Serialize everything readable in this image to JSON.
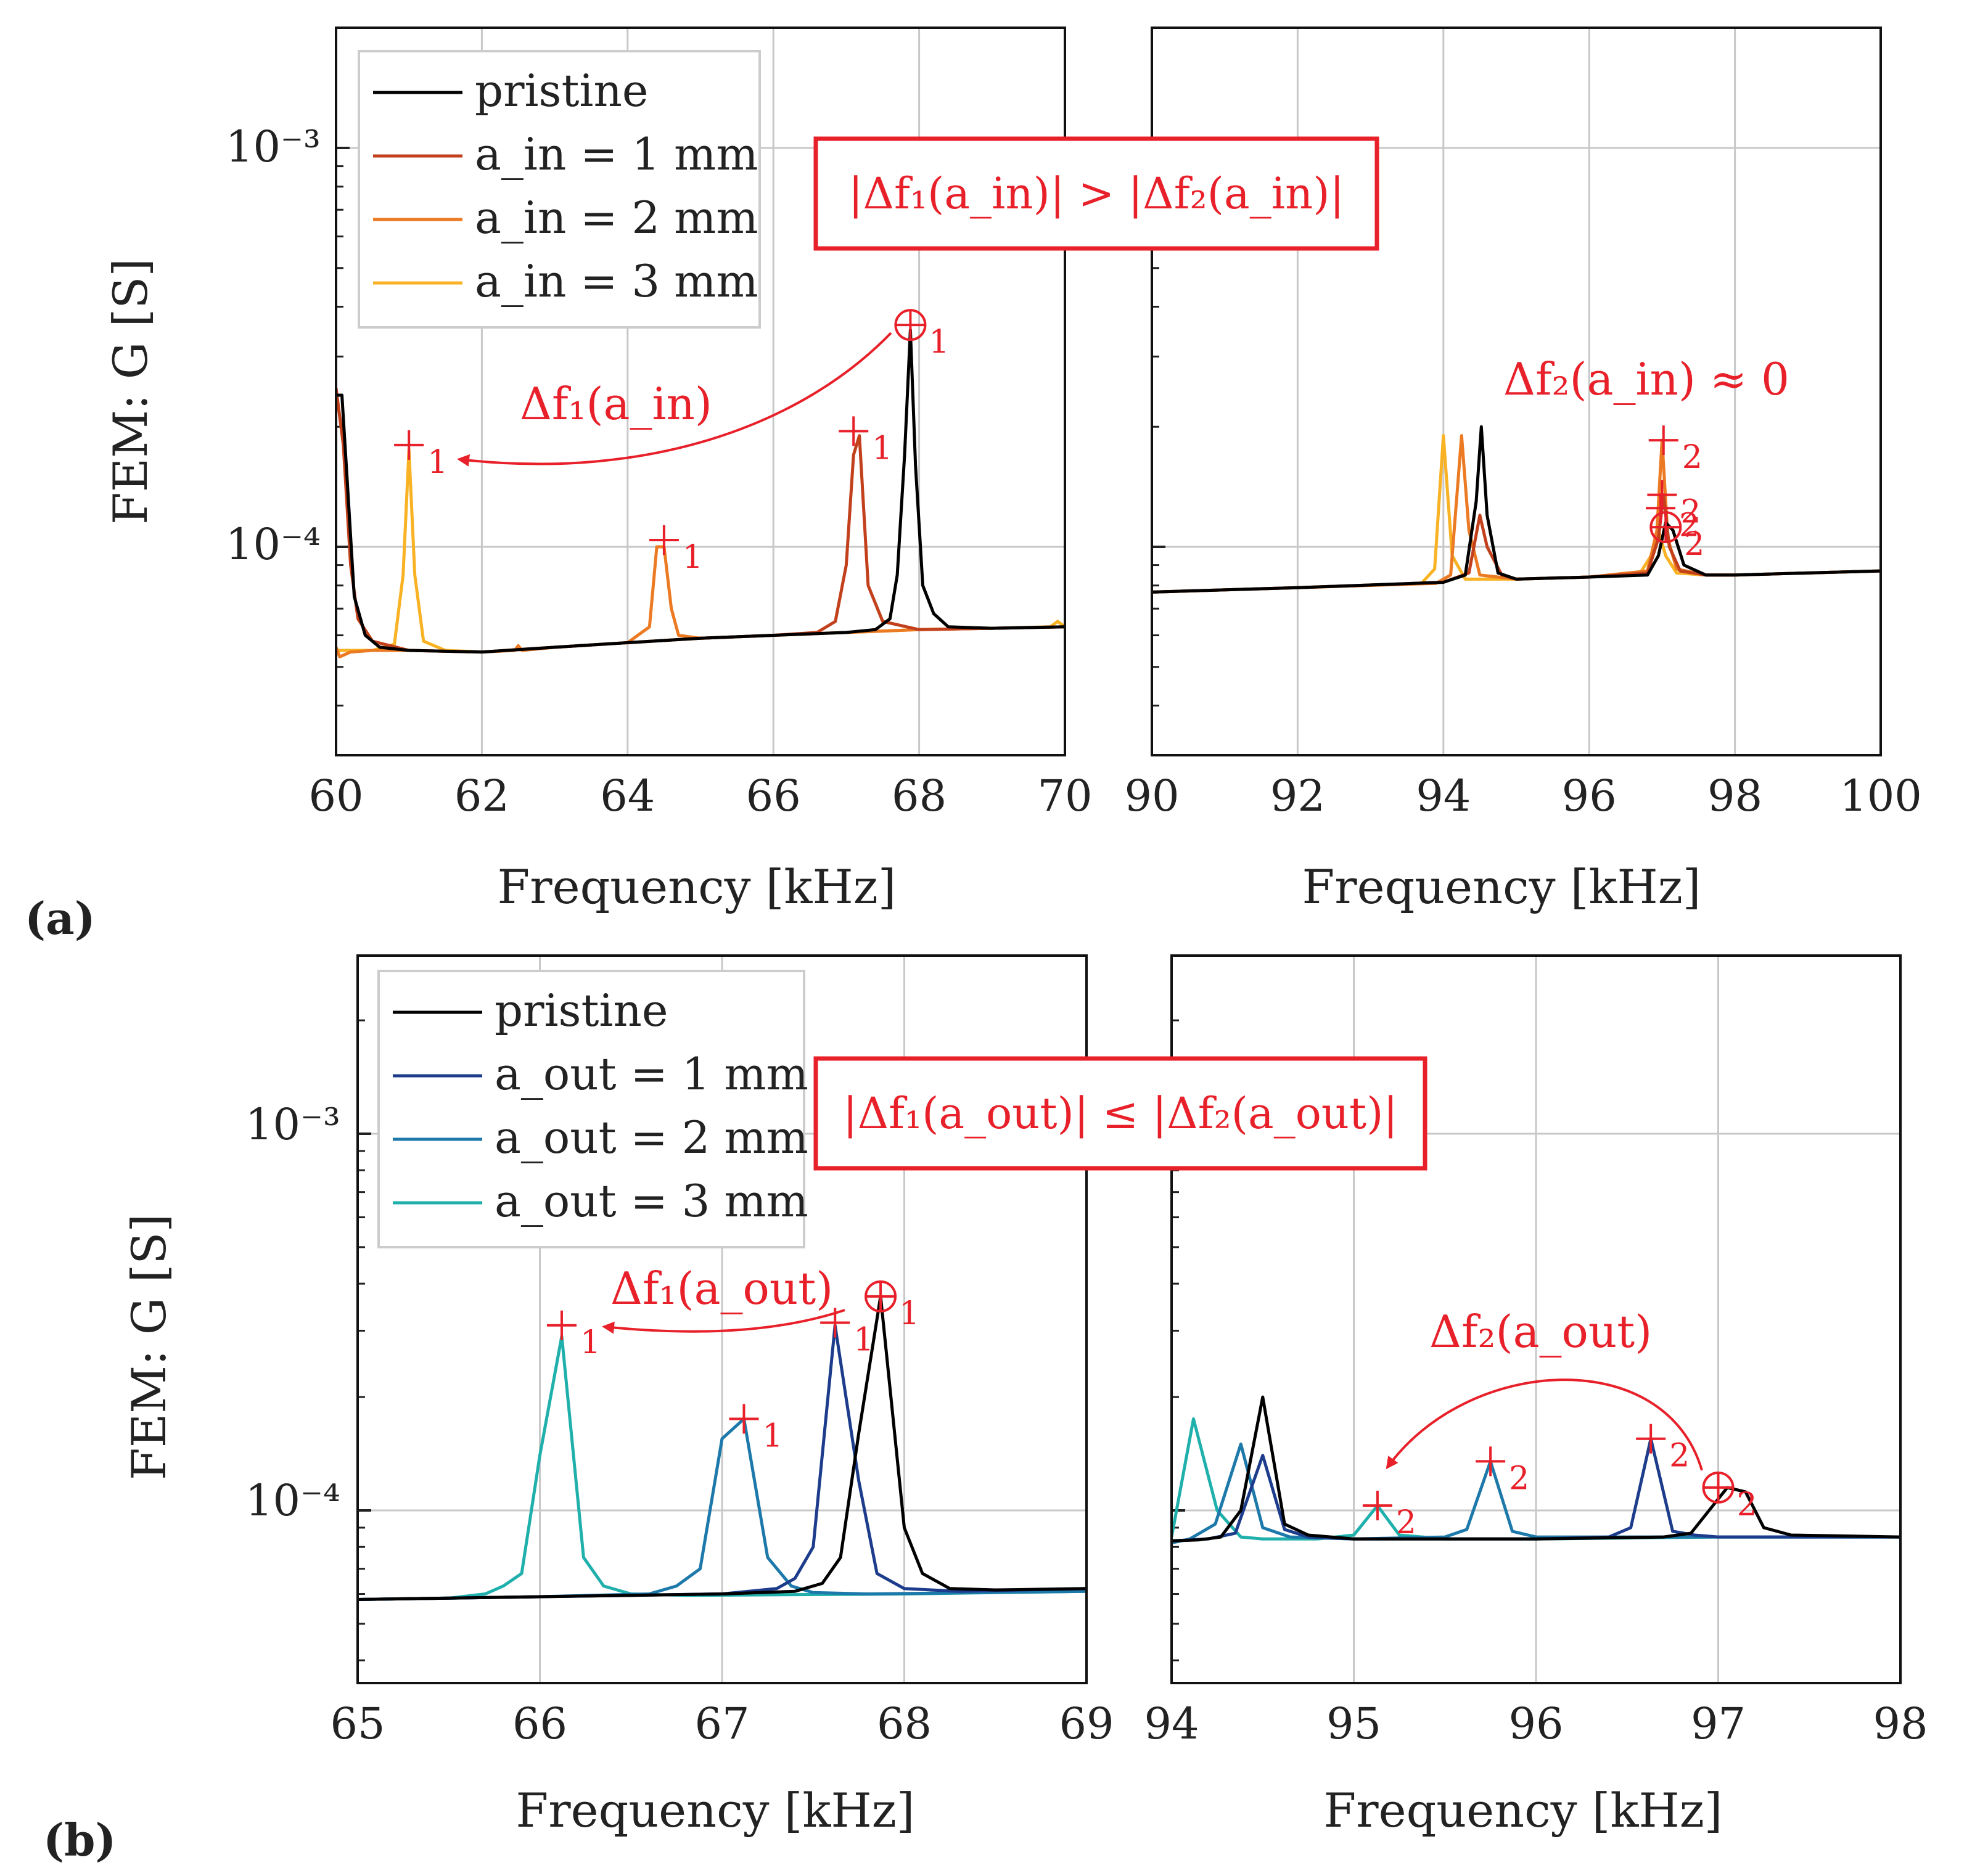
{
  "colors": {
    "pristine": "#000000",
    "ain1": "#c2411c",
    "ain2": "#ec7a22",
    "ain3": "#f8b223",
    "aout1": "#1d3d8c",
    "aout2": "#1d79aa",
    "aout3": "#20b0ac",
    "annotation": "#e8202a",
    "grid": "#c8c8c8"
  },
  "labels": {
    "panel_a": "(a)",
    "panel_b": "(b)",
    "xlabel": "Frequency [kHz]",
    "ylabel": "FEM: G [S]",
    "ytick_1e3": "10⁻³",
    "ytick_1e4": "10⁻⁴",
    "legend_a": [
      "pristine",
      "a_in = 1 mm",
      "a_in = 2 mm",
      "a_in = 3 mm"
    ],
    "legend_b": [
      "pristine",
      "a_out = 1 mm",
      "a_out = 2 mm",
      "a_out = 3 mm"
    ],
    "box_a": "|Δf₁(a_in)| > |Δf₂(a_in)|",
    "box_b": "|Δf₁(a_out)| ≤ |Δf₂(a_out)|",
    "df1_in": "Δf₁(a_in)",
    "df2_in": "Δf₂(a_in) ≈ 0",
    "df1_out": "Δf₁(a_out)",
    "df2_out": "Δf₂(a_out)",
    "marker_1": "1",
    "marker_2": "2"
  },
  "chart_data": [
    {
      "id": "a-left",
      "type": "line",
      "xlabel": "Frequency [kHz]",
      "ylabel": "FEM: G [S]",
      "xlim": [
        60,
        70
      ],
      "ylim": [
        3.5e-05,
        0.0022
      ],
      "yscale": "log",
      "xticks": [
        60,
        62,
        64,
        66,
        68,
        70
      ],
      "series": [
        {
          "name": "pristine",
          "color": "pristine",
          "x": [
            60,
            60.08,
            60.15,
            60.25,
            60.4,
            60.6,
            61,
            62,
            63,
            64,
            65,
            66,
            67,
            67.4,
            67.6,
            67.7,
            67.8,
            67.88,
            67.95,
            68.05,
            68.2,
            68.4,
            69,
            70
          ],
          "y": [
            0.00024,
            0.00024,
            0.00015,
            7.5e-05,
            6e-05,
            5.6e-05,
            5.5e-05,
            5.45e-05,
            5.6e-05,
            5.75e-05,
            5.9e-05,
            6e-05,
            6.1e-05,
            6.2e-05,
            6.6e-05,
            8.5e-05,
            0.00017,
            0.00035,
            0.00016,
            8e-05,
            6.8e-05,
            6.3e-05,
            6.25e-05,
            6.3e-05
          ]
        },
        {
          "name": "a_in = 1 mm",
          "color": "ain1",
          "x": [
            60,
            60.1,
            60.2,
            60.3,
            60.5,
            61,
            62,
            63,
            64,
            65,
            66,
            66.6,
            66.85,
            67.0,
            67.1,
            67.18,
            67.3,
            67.5,
            68,
            69,
            70
          ],
          "y": [
            0.00025,
            0.00018,
            9e-05,
            6.6e-05,
            5.8e-05,
            5.5e-05,
            5.45e-05,
            5.6e-05,
            5.75e-05,
            5.9e-05,
            6e-05,
            6.1e-05,
            6.5e-05,
            9e-05,
            0.00017,
            0.00019,
            8e-05,
            6.5e-05,
            6.2e-05,
            6.25e-05,
            6.3e-05
          ]
        },
        {
          "name": "a_in = 2 mm",
          "color": "ain2",
          "x": [
            60,
            60.05,
            60.2,
            60.5,
            61,
            62,
            62.45,
            62.5,
            62.55,
            63,
            64,
            64.3,
            64.4,
            64.5,
            64.6,
            64.7,
            65,
            66,
            67,
            68,
            69,
            70
          ],
          "y": [
            5.6e-05,
            5.3e-05,
            5.45e-05,
            5.5e-05,
            5.5e-05,
            5.45e-05,
            5.5e-05,
            5.65e-05,
            5.5e-05,
            5.6e-05,
            5.75e-05,
            6.3e-05,
            0.0001,
            0.0001,
            7e-05,
            6e-05,
            5.9e-05,
            6e-05,
            6.1e-05,
            6.2e-05,
            6.25e-05,
            6.3e-05
          ]
        },
        {
          "name": "a_in = 3 mm",
          "color": "ain3",
          "x": [
            60,
            60.1,
            60.5,
            60.8,
            60.92,
            61.0,
            61.08,
            61.2,
            61.5,
            62,
            63,
            64,
            65,
            66,
            67,
            68,
            69,
            69.8,
            69.9,
            70
          ],
          "y": [
            5.5e-05,
            5.5e-05,
            5.5e-05,
            5.7e-05,
            8.5e-05,
            0.000175,
            8.5e-05,
            5.8e-05,
            5.5e-05,
            5.45e-05,
            5.6e-05,
            5.75e-05,
            5.9e-05,
            6e-05,
            6.1e-05,
            6.2e-05,
            6.25e-05,
            6.3e-05,
            6.5e-05,
            6.3e-05
          ]
        }
      ]
    },
    {
      "id": "a-right",
      "type": "line",
      "xlim": [
        90,
        100
      ],
      "ylim": [
        3.5e-05,
        0.0022
      ],
      "yscale": "log",
      "xticks": [
        90,
        92,
        94,
        96,
        98,
        100
      ],
      "series": [
        {
          "name": "pristine",
          "color": "pristine",
          "x": [
            90,
            92,
            94,
            94.3,
            94.45,
            94.52,
            94.6,
            94.75,
            95,
            96,
            96.8,
            96.95,
            97.05,
            97.15,
            97.3,
            97.6,
            98,
            99,
            100
          ],
          "y": [
            7.7e-05,
            7.9e-05,
            8.15e-05,
            8.5e-05,
            0.00013,
            0.0002,
            0.00012,
            8.6e-05,
            8.3e-05,
            8.4e-05,
            8.5e-05,
            9.5e-05,
            0.000115,
            0.00011,
            9e-05,
            8.5e-05,
            8.5e-05,
            8.6e-05,
            8.7e-05
          ]
        },
        {
          "name": "a_in = 1 mm",
          "color": "ain1",
          "x": [
            90,
            92,
            94,
            94.35,
            94.5,
            94.6,
            94.8,
            95,
            96,
            96.8,
            96.95,
            97.02,
            97.1,
            97.25,
            97.6,
            98,
            99,
            100
          ],
          "y": [
            7.7e-05,
            7.9e-05,
            8.15e-05,
            8.6e-05,
            0.00012,
            0.0001,
            8.5e-05,
            8.3e-05,
            8.4e-05,
            8.6e-05,
            0.000105,
            0.000135,
            0.0001,
            8.7e-05,
            8.5e-05,
            8.5e-05,
            8.6e-05,
            8.7e-05
          ]
        },
        {
          "name": "a_in = 2 mm",
          "color": "ain2",
          "x": [
            90,
            92,
            93.9,
            94.1,
            94.25,
            94.35,
            94.5,
            95,
            96,
            96.8,
            96.93,
            97.0,
            97.08,
            97.2,
            97.6,
            98,
            99,
            100
          ],
          "y": [
            7.7e-05,
            7.9e-05,
            8.1e-05,
            8.5e-05,
            0.00019,
            0.00011,
            8.5e-05,
            8.3e-05,
            8.4e-05,
            8.7e-05,
            0.00011,
            0.000185,
            0.000105,
            8.8e-05,
            8.5e-05,
            8.5e-05,
            8.6e-05,
            8.7e-05
          ]
        },
        {
          "name": "a_in = 3 mm",
          "color": "ain3",
          "x": [
            90,
            92,
            93.7,
            93.88,
            94.0,
            94.12,
            94.3,
            95,
            96,
            96.7,
            96.85,
            96.95,
            97.05,
            97.2,
            97.6,
            98,
            99,
            100
          ],
          "y": [
            7.7e-05,
            7.9e-05,
            8.1e-05,
            8.8e-05,
            0.00019,
            9.5e-05,
            8.3e-05,
            8.3e-05,
            8.4e-05,
            8.6e-05,
            9.5e-05,
            0.00011,
            9.5e-05,
            8.6e-05,
            8.5e-05,
            8.5e-05,
            8.6e-05,
            8.7e-05
          ]
        }
      ],
      "markers": [
        {
          "x": 97.02,
          "y": 0.000185,
          "shape": "plus",
          "label": "2"
        },
        {
          "x": 97.0,
          "y": 0.000135,
          "shape": "plus",
          "label": "2"
        },
        {
          "x": 96.98,
          "y": 0.000125,
          "shape": "plus",
          "label": "2"
        },
        {
          "x": 97.05,
          "y": 0.000112,
          "shape": "oplus",
          "label": "2"
        }
      ]
    },
    {
      "id": "b-left",
      "type": "line",
      "xlabel": "Frequency [kHz]",
      "ylabel": "FEM: G [S]",
      "xlim": [
        65,
        69
      ],
      "ylim": [
        3.5e-05,
        0.0026
      ],
      "yscale": "log",
      "xticks": [
        65,
        66,
        67,
        68,
        69
      ],
      "series": [
        {
          "name": "pristine",
          "color": "pristine",
          "x": [
            65,
            66,
            67,
            67.4,
            67.55,
            67.65,
            67.75,
            67.87,
            68.0,
            68.1,
            68.25,
            68.5,
            69
          ],
          "y": [
            5.8e-05,
            5.9e-05,
            6e-05,
            6.1e-05,
            6.4e-05,
            7.5e-05,
            0.00016,
            0.00037,
            9e-05,
            6.8e-05,
            6.2e-05,
            6.15e-05,
            6.2e-05
          ]
        },
        {
          "name": "a_out = 1 mm",
          "color": "aout1",
          "x": [
            65,
            66,
            67,
            67.3,
            67.4,
            67.5,
            67.62,
            67.75,
            67.85,
            68.0,
            68.3,
            69
          ],
          "y": [
            5.8e-05,
            5.9e-05,
            6e-05,
            6.2e-05,
            6.6e-05,
            8e-05,
            0.00031,
            0.00012,
            6.8e-05,
            6.2e-05,
            6.1e-05,
            6.2e-05
          ]
        },
        {
          "name": "a_out = 2 mm",
          "color": "aout2",
          "x": [
            65,
            66,
            66.6,
            66.75,
            66.88,
            67.0,
            67.12,
            67.25,
            67.38,
            67.5,
            67.8,
            69
          ],
          "y": [
            5.8e-05,
            5.9e-05,
            6e-05,
            6.3e-05,
            7e-05,
            0.000155,
            0.000175,
            7.5e-05,
            6.3e-05,
            6.05e-05,
            6e-05,
            6.1e-05
          ]
        },
        {
          "name": "a_out = 3 mm",
          "color": "aout3",
          "x": [
            65,
            65.5,
            65.7,
            65.8,
            65.9,
            66.0,
            66.12,
            66.24,
            66.35,
            66.5,
            66.8,
            68,
            69
          ],
          "y": [
            5.8e-05,
            5.85e-05,
            6e-05,
            6.3e-05,
            6.8e-05,
            0.00014,
            0.00029,
            7.5e-05,
            6.3e-05,
            6e-05,
            5.95e-05,
            6e-05,
            6.1e-05
          ]
        }
      ]
    },
    {
      "id": "b-right",
      "type": "line",
      "xlim": [
        94,
        98
      ],
      "ylim": [
        3.5e-05,
        0.0026
      ],
      "yscale": "log",
      "xticks": [
        94,
        95,
        96,
        97,
        98
      ],
      "series": [
        {
          "name": "pristine",
          "color": "pristine",
          "x": [
            94,
            94.15,
            94.27,
            94.38,
            94.5,
            94.62,
            94.75,
            95,
            96,
            96.7,
            96.85,
            96.95,
            97.05,
            97.15,
            97.25,
            97.4,
            98
          ],
          "y": [
            8.3e-05,
            8.35e-05,
            8.5e-05,
            0.0001,
            0.0002,
            9.2e-05,
            8.6e-05,
            8.4e-05,
            8.4e-05,
            8.5e-05,
            8.7e-05,
            0.0001,
            0.000115,
            0.000112,
            9e-05,
            8.6e-05,
            8.5e-05
          ]
        },
        {
          "name": "a_out = 1 mm",
          "color": "aout1",
          "x": [
            94,
            94.2,
            94.35,
            94.5,
            94.62,
            94.75,
            95,
            96,
            96.4,
            96.52,
            96.63,
            96.75,
            96.87,
            97,
            98
          ],
          "y": [
            8.3e-05,
            8.4e-05,
            8.7e-05,
            0.00014,
            8.9e-05,
            8.5e-05,
            8.4e-05,
            8.4e-05,
            8.5e-05,
            9e-05,
            0.000155,
            8.8e-05,
            8.6e-05,
            8.5e-05,
            8.5e-05
          ]
        },
        {
          "name": "a_out = 2 mm",
          "color": "aout2",
          "x": [
            94,
            94.1,
            94.24,
            94.38,
            94.5,
            94.65,
            95,
            95.5,
            95.62,
            95.75,
            95.87,
            96,
            97,
            98
          ],
          "y": [
            8.2e-05,
            8.4e-05,
            9.2e-05,
            0.00015,
            9e-05,
            8.5e-05,
            8.4e-05,
            8.5e-05,
            8.9e-05,
            0.000135,
            8.8e-05,
            8.5e-05,
            8.5e-05,
            8.5e-05
          ]
        },
        {
          "name": "a_out = 3 mm",
          "color": "aout3",
          "x": [
            94,
            94.12,
            94.25,
            94.38,
            94.5,
            94.8,
            95.0,
            95.13,
            95.25,
            95.5,
            96,
            97,
            98
          ],
          "y": [
            8.5e-05,
            0.000175,
            0.0001,
            8.5e-05,
            8.4e-05,
            8.4e-05,
            8.6e-05,
            0.000103,
            8.6e-05,
            8.4e-05,
            8.4e-05,
            8.5e-05,
            8.5e-05
          ]
        }
      ]
    }
  ]
}
